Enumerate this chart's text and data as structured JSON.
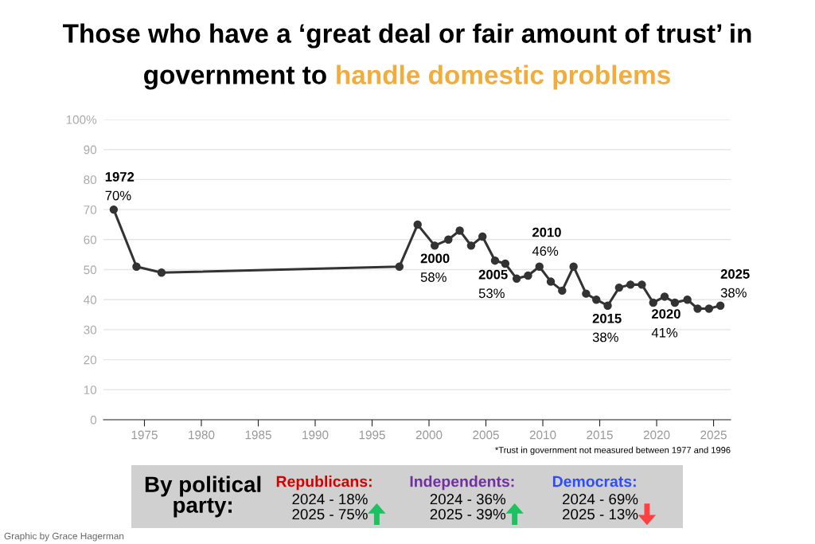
{
  "chart_data": [
    {
      "type": "line",
      "title": "Those who have a ‘great deal or fair amount of trust’ in\ngovernment to",
      "subtitle": "handle domestic problems",
      "x": [
        1972.3,
        1974.3,
        1976.5,
        1997.4,
        1999.0,
        2000.5,
        2001.7,
        2002.7,
        2003.7,
        2004.7,
        2005.8,
        2006.7,
        2007.7,
        2008.7,
        2009.7,
        2010.7,
        2011.7,
        2012.7,
        2013.8,
        2014.7,
        2015.7,
        2016.7,
        2017.7,
        2018.7,
        2019.7,
        2020.7,
        2021.6,
        2022.7,
        2023.6,
        2024.6,
        2025.6
      ],
      "series": [
        {
          "color": "#333333",
          "values": [
            70,
            51,
            49,
            51,
            65,
            58,
            60,
            63,
            58,
            61,
            53,
            52,
            47,
            48,
            51,
            46,
            43,
            51,
            42,
            40,
            38,
            44,
            45,
            45,
            39,
            41,
            39,
            40,
            37,
            37,
            38
          ]
        }
      ],
      "xlim": [
        1971.4,
        2026.5
      ],
      "xticks": [
        1975,
        1980,
        1985,
        1990,
        1995,
        2000,
        2005,
        2010,
        2015,
        2020,
        2025
      ],
      "ylim": [
        0,
        100
      ],
      "yticks": [
        0,
        10,
        20,
        30,
        40,
        50,
        60,
        70,
        80,
        90,
        {
          "value": 100,
          "label": "100%"
        }
      ],
      "grid": "y",
      "marker": "circle",
      "line_style": "solid",
      "legend": false,
      "annotations": [
        {
          "text": "1972\n70%",
          "x": 1972.3,
          "y": 70
        },
        {
          "text": "2000\n58%",
          "x": 2000.5,
          "y": 58
        },
        {
          "text": "2005\n53%",
          "x": 2005.8,
          "y": 53
        },
        {
          "text": "2010\n46%",
          "x": 2010.7,
          "y": 46
        },
        {
          "text": "2015\n38%",
          "x": 2015.7,
          "y": 38
        },
        {
          "text": "2020\n41%",
          "x": 2020.7,
          "y": 41
        },
        {
          "text": "2025\n38%",
          "x": 2025.6,
          "y": 38
        },
        "*Trust in government not measured between 1977 and 1996",
        "Graphic by Grace Hagerman"
      ]
    },
    {
      "type": "other",
      "title": "By political party:",
      "annotations": [
        "Republicans:",
        "2024 - 18%\n2025 - 75%",
        "Independents:",
        "2024 - 36%\n2025 - 39%",
        "Democrats:",
        "2024 - 69%\n2025 - 13%"
      ]
    }
  ]
}
